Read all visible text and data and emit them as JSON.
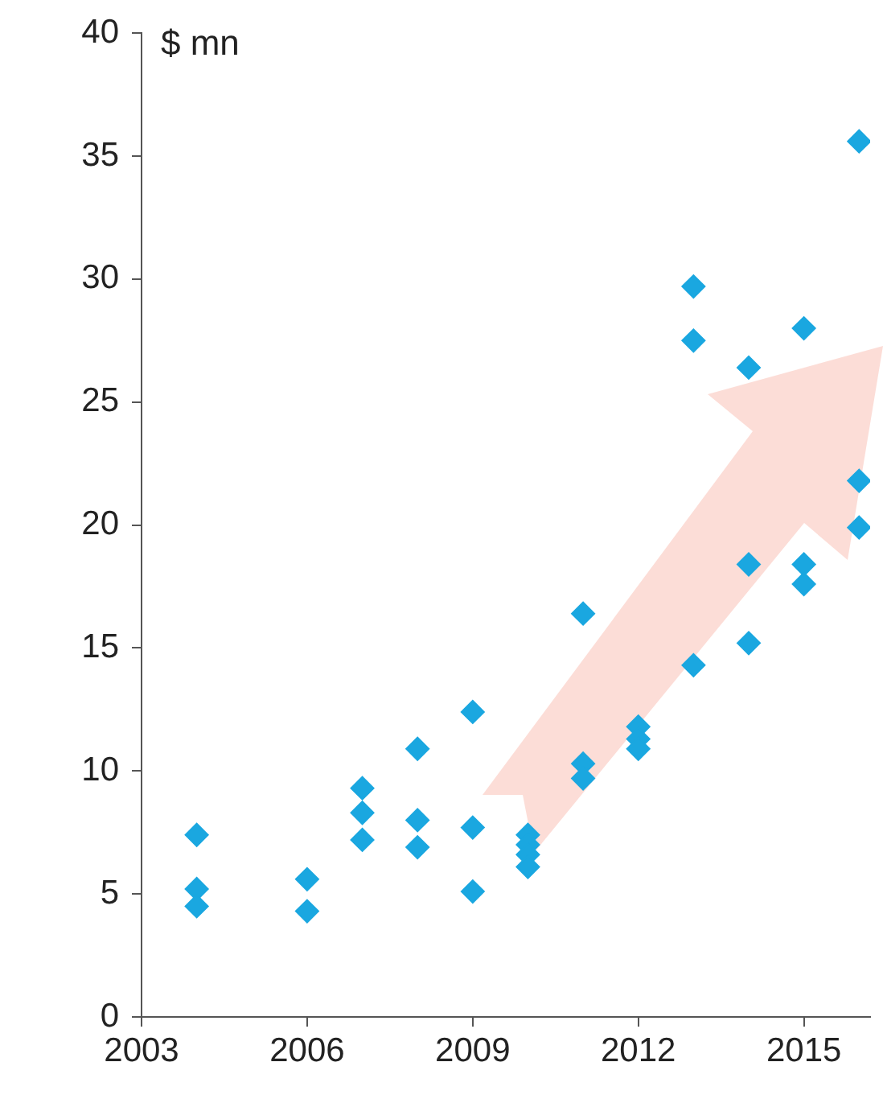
{
  "chart_data": {
    "type": "scatter",
    "ylabel": "$ mn",
    "marker": "diamond",
    "grid": false,
    "legend": false,
    "xlim": [
      2003,
      2016.2
    ],
    "xticks": [
      2003,
      2006,
      2009,
      2012,
      2015
    ],
    "ylim": [
      0,
      40
    ],
    "yticks": [
      0,
      5,
      10,
      15,
      20,
      25,
      30,
      35,
      40
    ],
    "series": [
      {
        "color": "#1aa7e0",
        "x": [
          2004,
          2004,
          2004,
          2006,
          2006,
          2007,
          2007,
          2007,
          2008,
          2008,
          2008,
          2009,
          2009,
          2009,
          2010,
          2010,
          2010,
          2010,
          2011,
          2011,
          2011,
          2012,
          2012,
          2012,
          2013,
          2013,
          2013,
          2014,
          2014,
          2014,
          2015,
          2015,
          2015,
          2016,
          2016,
          2016
        ],
        "values": [
          7.4,
          5.2,
          4.5,
          5.6,
          4.3,
          9.3,
          8.3,
          7.2,
          10.9,
          8.0,
          6.9,
          12.4,
          7.7,
          5.1,
          7.4,
          7.0,
          6.6,
          6.1,
          16.4,
          10.3,
          9.7,
          11.8,
          11.3,
          10.9,
          29.7,
          27.5,
          14.3,
          26.4,
          18.4,
          15.2,
          28.0,
          18.4,
          17.6,
          35.6,
          21.8,
          19.9
        ]
      }
    ]
  }
}
